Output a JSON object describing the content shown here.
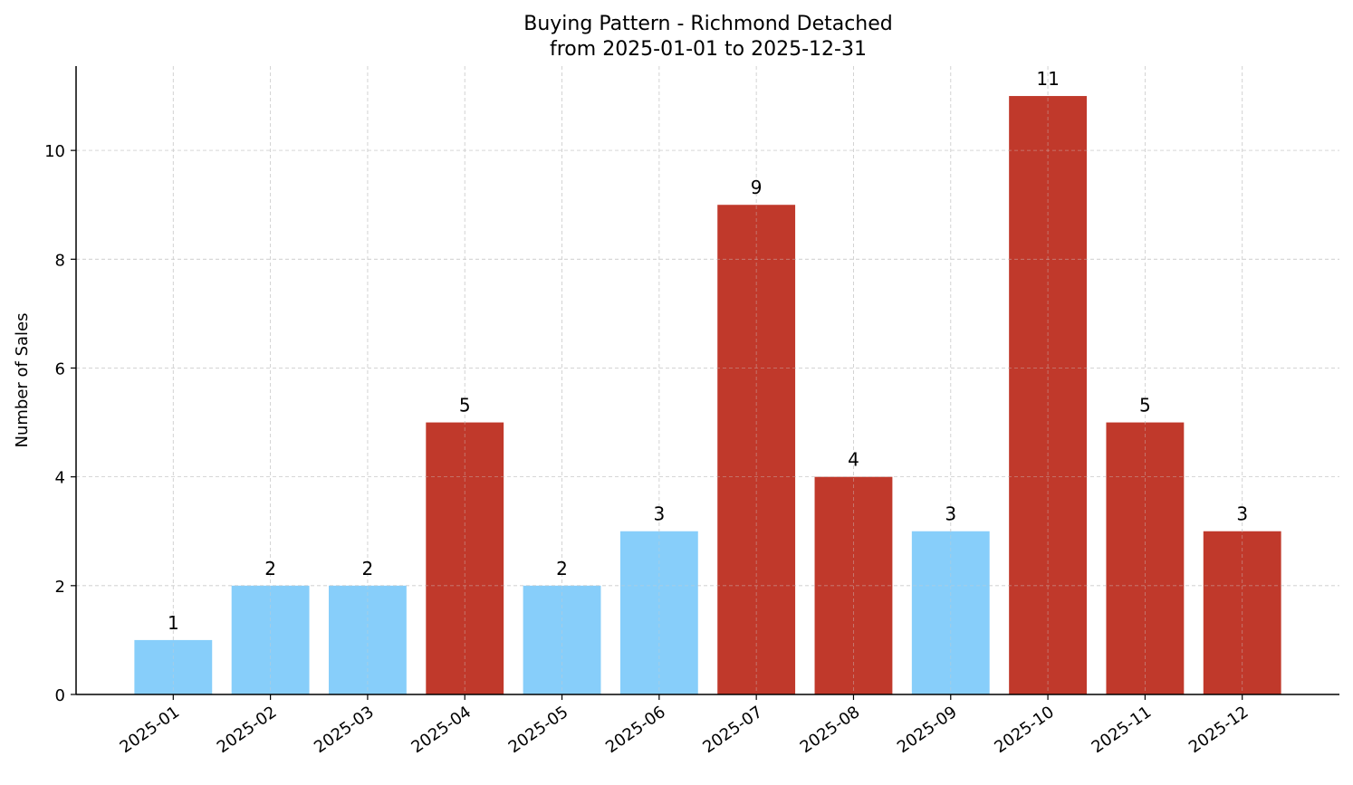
{
  "chart_data": {
    "type": "bar",
    "title": "Buying Pattern - Richmond Detached",
    "subtitle": "from 2025-01-01 to 2025-12-31",
    "xlabel": "",
    "ylabel": "Number of Sales",
    "categories": [
      "2025-01",
      "2025-02",
      "2025-03",
      "2025-04",
      "2025-05",
      "2025-06",
      "2025-07",
      "2025-08",
      "2025-09",
      "2025-10",
      "2025-11",
      "2025-12"
    ],
    "values": [
      1,
      2,
      2,
      5,
      2,
      3,
      9,
      4,
      3,
      11,
      5,
      3
    ],
    "bar_colors": [
      "#87CEFA",
      "#87CEFA",
      "#87CEFA",
      "#C0392B",
      "#87CEFA",
      "#87CEFA",
      "#C0392B",
      "#C0392B",
      "#87CEFA",
      "#C0392B",
      "#C0392B",
      "#C0392B"
    ],
    "yticks": [
      0,
      2,
      4,
      6,
      8,
      10
    ],
    "ylim": [
      0,
      11.55
    ],
    "grid": true,
    "data_labels": true
  }
}
